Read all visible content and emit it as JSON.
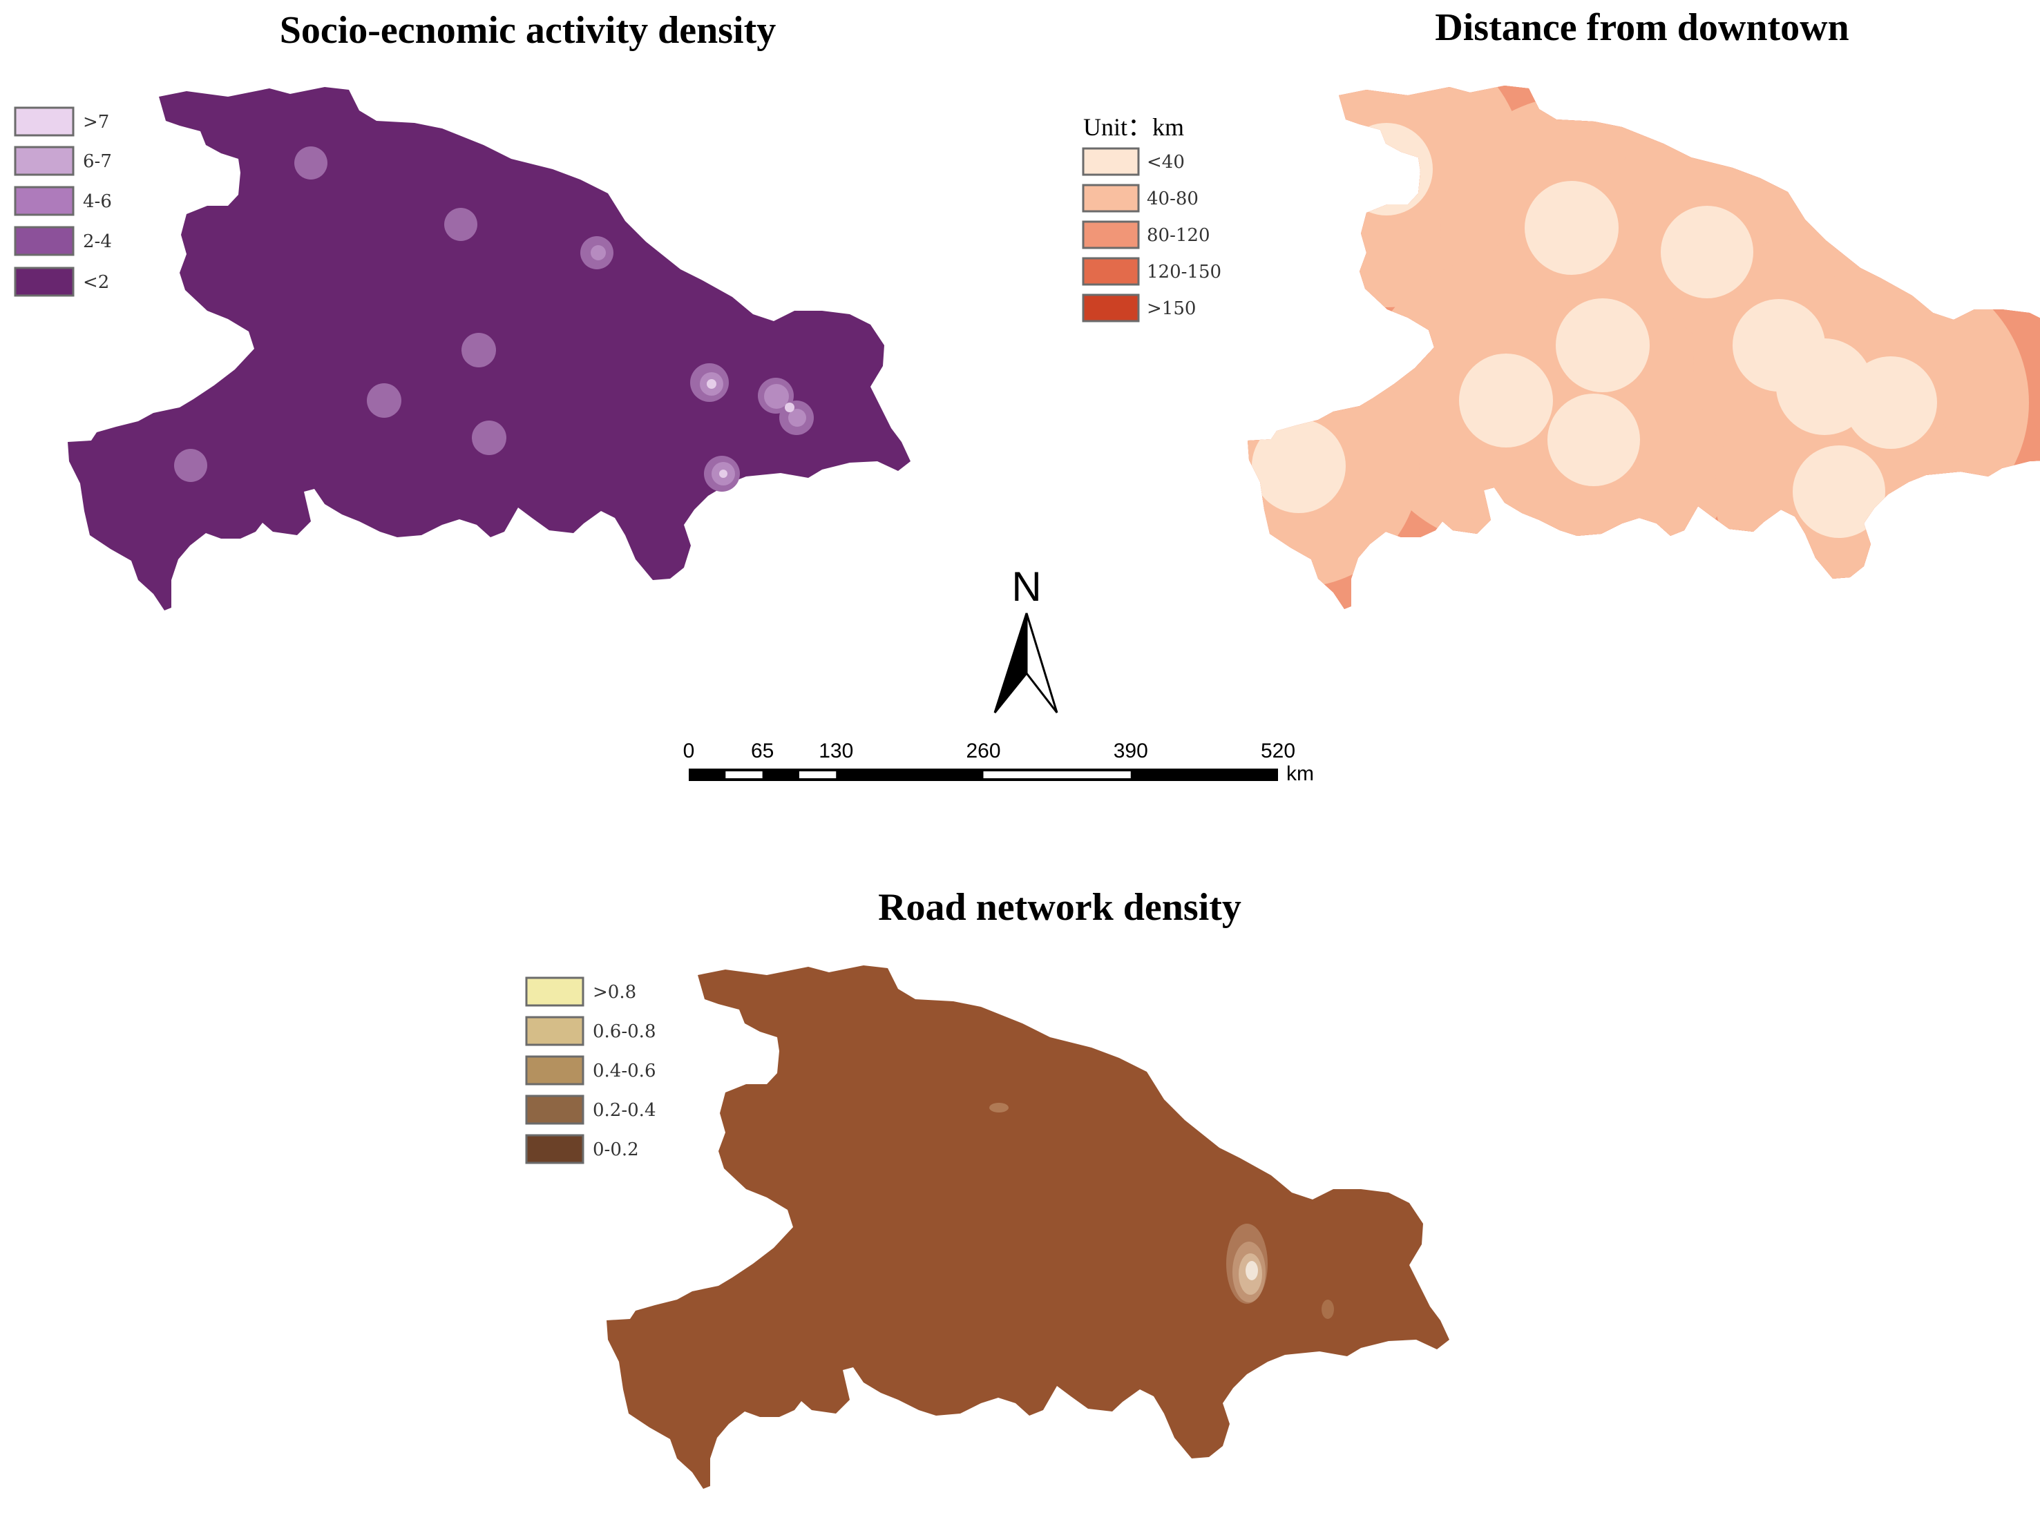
{
  "maps": {
    "socio": {
      "title": "Socio-ecnomic activity density",
      "legend": [
        {
          "label": ">7",
          "color": "#ead3ee"
        },
        {
          "label": "6-7",
          "color": "#c9a6d2"
        },
        {
          "label": "4-6",
          "color": "#ae7bbb"
        },
        {
          "label": "2-4",
          "color": "#8c519a"
        },
        {
          "label": "<2",
          "color": "#68266f"
        }
      ],
      "fill_color": "#68266f"
    },
    "distance": {
      "title": "Distance from downtown",
      "unit_label": "Unit：km",
      "legend": [
        {
          "label": "<40",
          "color": "#fde6d3"
        },
        {
          "label": "40-80",
          "color": "#f9bfa0"
        },
        {
          "label": "80-120",
          "color": "#f19677"
        },
        {
          "label": "120-150",
          "color": "#e36b4b"
        },
        {
          "label": ">150",
          "color": "#cc4124"
        }
      ]
    },
    "road": {
      "title": "Road network density",
      "legend": [
        {
          "label": ">0.8",
          "color": "#f2eba8"
        },
        {
          "label": "0.6-0.8",
          "color": "#d5bd88"
        },
        {
          "label": "0.4-0.6",
          "color": "#b4915f"
        },
        {
          "label": "0.2-0.4",
          "color": "#8e6644"
        },
        {
          "label": "0-0.2",
          "color": "#6b4128"
        }
      ],
      "fill_color": "#96532f"
    }
  },
  "north_arrow": {
    "label": "N"
  },
  "scale_bar": {
    "ticks": [
      0,
      65,
      130,
      260,
      390,
      520
    ],
    "unit": "km"
  }
}
